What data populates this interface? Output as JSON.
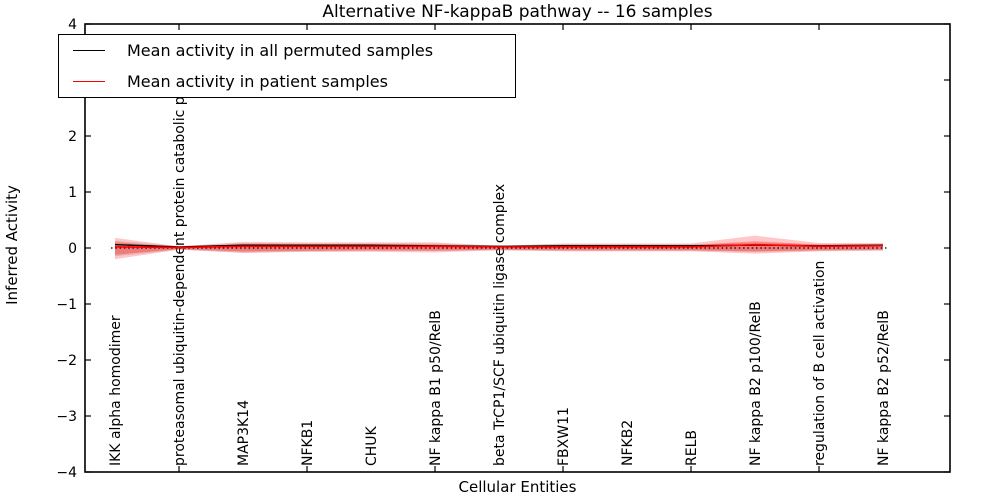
{
  "chart_data": {
    "type": "line",
    "title": "Alternative NF-kappaB pathway -- 16 samples",
    "xlabel": "Cellular Entities",
    "ylabel": "Inferred Activity",
    "ylim": [
      -4,
      4
    ],
    "yticks": [
      -4,
      -3,
      -2,
      -1,
      0,
      1,
      2,
      3,
      4
    ],
    "grid": false,
    "legend": {
      "position": "upper-left",
      "entries": [
        {
          "label": "Mean activity in all permuted samples",
          "color": "#000000"
        },
        {
          "label": "Mean activity in patient samples",
          "color": "#ff0000"
        }
      ]
    },
    "categories": [
      "IKK alpha homodimer",
      "proteasomal ubiquitin-dependent protein catabolic pr",
      "MAP3K14",
      "NFKB1",
      "CHUK",
      "NF kappa B1 p50/RelB",
      "beta TrCP1/SCF ubiquitin ligase complex",
      "FBXW11",
      "NFKB2",
      "RELB",
      "NF kappa B2 p100/RelB",
      "regulation of B cell activation",
      "NF kappa B2 p52/RelB"
    ],
    "series": [
      {
        "name": "Mean activity in all permuted samples",
        "color": "#000000",
        "values": [
          0.06,
          0.02,
          0.05,
          0.05,
          0.05,
          0.04,
          0.03,
          0.04,
          0.04,
          0.04,
          0.05,
          0.04,
          0.05
        ]
      },
      {
        "name": "Mean activity in patient samples",
        "color": "#ff0000",
        "values": [
          0.02,
          0.01,
          0.03,
          0.03,
          0.03,
          0.03,
          0.02,
          0.02,
          0.02,
          0.02,
          0.06,
          0.03,
          0.04
        ]
      }
    ],
    "bands": [
      {
        "name": "permuted-range",
        "color": "#999999",
        "opacity": 0.3,
        "upper": [
          0.13,
          0.03,
          0.09,
          0.08,
          0.08,
          0.08,
          0.04,
          0.07,
          0.07,
          0.07,
          0.09,
          0.07,
          0.07
        ],
        "lower": [
          -0.15,
          -0.03,
          -0.08,
          -0.06,
          -0.05,
          -0.05,
          -0.04,
          -0.05,
          -0.05,
          -0.05,
          -0.07,
          -0.05,
          -0.04
        ]
      },
      {
        "name": "patient-range-outer",
        "color": "#ff0000",
        "opacity": 0.22,
        "upper": [
          0.18,
          0.03,
          0.11,
          0.1,
          0.1,
          0.1,
          0.04,
          0.08,
          0.08,
          0.08,
          0.22,
          0.09,
          0.09
        ],
        "lower": [
          -0.2,
          -0.03,
          -0.09,
          -0.07,
          -0.07,
          -0.08,
          -0.04,
          -0.06,
          -0.06,
          -0.06,
          -0.1,
          -0.06,
          -0.05
        ]
      },
      {
        "name": "patient-range-inner",
        "color": "#ff0000",
        "opacity": 0.3,
        "upper": [
          0.1,
          0.02,
          0.07,
          0.06,
          0.06,
          0.06,
          0.03,
          0.05,
          0.05,
          0.05,
          0.12,
          0.06,
          0.06
        ],
        "lower": [
          -0.12,
          -0.02,
          -0.06,
          -0.05,
          -0.04,
          -0.05,
          -0.03,
          -0.04,
          -0.04,
          -0.04,
          -0.06,
          -0.04,
          -0.03
        ]
      }
    ],
    "zero_line": {
      "y": 0,
      "style": "dotted",
      "color": "#000000"
    }
  }
}
